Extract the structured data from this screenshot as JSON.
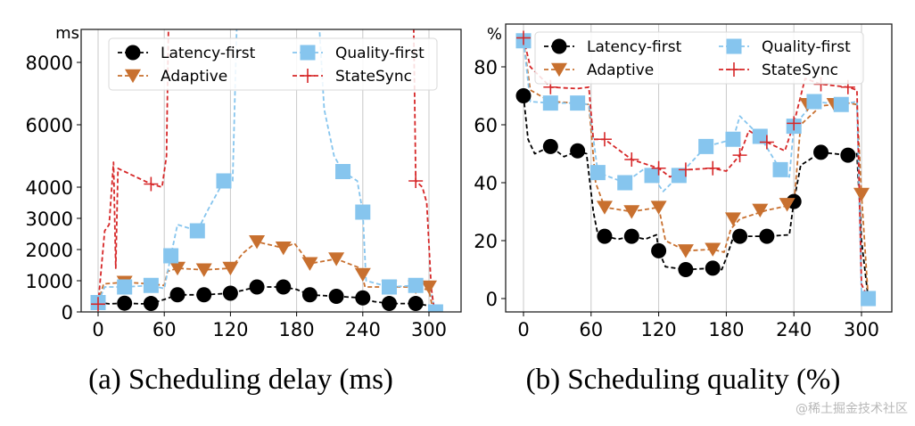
{
  "chart_data": [
    {
      "type": "line",
      "id": "delay",
      "title": "",
      "caption": "(a) Scheduling delay (ms)",
      "xlabel": "",
      "ylabel": "ms",
      "xlim": [
        -15,
        330
      ],
      "ylim": [
        0,
        9000
      ],
      "xticks": [
        0,
        60,
        120,
        180,
        240,
        300
      ],
      "xtick_labels": [
        "0",
        "60",
        "120",
        "180",
        "240",
        "300"
      ],
      "yticks": [
        0,
        1000,
        2000,
        3000,
        4000,
        6000,
        8000
      ],
      "ytick_labels": [
        "0",
        "1000",
        "2000",
        "3000",
        "4000",
        "6000",
        "8000"
      ],
      "grid": "vertical",
      "legend": {
        "position": "top",
        "columns": 2
      },
      "series": [
        {
          "name": "Latency-first",
          "color": "#000000",
          "marker": "circle",
          "x": [
            0,
            10,
            24,
            40,
            48,
            60,
            72,
            96,
            120,
            144,
            168,
            180,
            192,
            216,
            240,
            250,
            264,
            288,
            300,
            306
          ],
          "y": [
            300,
            260,
            280,
            260,
            270,
            400,
            550,
            550,
            600,
            800,
            800,
            720,
            550,
            500,
            450,
            330,
            270,
            270,
            200,
            0
          ],
          "marker_x": [
            24,
            48,
            72,
            96,
            120,
            144,
            168,
            192,
            216,
            240,
            264,
            288
          ],
          "marker_y": [
            280,
            270,
            550,
            550,
            600,
            800,
            800,
            550,
            500,
            450,
            270,
            270
          ]
        },
        {
          "name": "Adaptive",
          "color": "#c8702f",
          "marker": "triangle-down",
          "x": [
            0,
            5,
            24,
            48,
            60,
            63,
            72,
            96,
            120,
            132,
            144,
            168,
            178,
            192,
            216,
            238,
            242,
            264,
            288,
            300,
            304
          ],
          "y": [
            300,
            900,
            950,
            900,
            850,
            1300,
            1400,
            1350,
            1400,
            1900,
            2250,
            2050,
            2200,
            1550,
            1700,
            1400,
            800,
            800,
            800,
            700,
            0
          ],
          "marker_x": [
            24,
            72,
            96,
            120,
            144,
            168,
            192,
            216,
            240,
            264,
            288,
            300
          ],
          "marker_y": [
            950,
            1400,
            1350,
            1400,
            2250,
            2050,
            1550,
            1700,
            1200,
            800,
            800,
            800
          ]
        },
        {
          "name": "Quality-first",
          "color": "#86c5ee",
          "marker": "square",
          "x": [
            0,
            6,
            24,
            48,
            60,
            66,
            72,
            90,
            100,
            114,
            122,
            126,
            200,
            205,
            214,
            222,
            235,
            240,
            243,
            264,
            288,
            300,
            306
          ],
          "y": [
            300,
            800,
            800,
            850,
            750,
            1800,
            2800,
            2600,
            3300,
            4200,
            4200,
            9500,
            9500,
            6500,
            5000,
            4500,
            4200,
            3200,
            1000,
            800,
            850,
            900,
            0
          ],
          "marker_x": [
            0,
            24,
            48,
            66,
            90,
            114,
            222,
            240,
            264,
            288,
            306
          ],
          "marker_y": [
            300,
            800,
            850,
            1800,
            2600,
            4200,
            4500,
            3200,
            800,
            850,
            0
          ]
        },
        {
          "name": "StateSync",
          "color": "#d62728",
          "marker": "plus",
          "x": [
            0,
            6,
            10,
            14,
            16,
            18,
            24,
            36,
            48,
            58,
            62,
            64,
            286,
            288,
            294,
            298,
            302,
            305
          ],
          "y": [
            250,
            2600,
            2800,
            4800,
            1400,
            4600,
            4500,
            4300,
            4100,
            4000,
            5000,
            9500,
            9500,
            4200,
            4000,
            3500,
            800,
            0
          ],
          "marker_x": [
            0,
            48,
            288
          ],
          "marker_y": [
            250,
            4100,
            4200
          ]
        }
      ]
    },
    {
      "type": "line",
      "id": "quality",
      "title": "",
      "caption": "(b) Scheduling quality (%)",
      "xlabel": "",
      "ylabel": "%",
      "xlim": [
        -15,
        330
      ],
      "ylim": [
        -4,
        92
      ],
      "xticks": [
        0,
        60,
        120,
        180,
        240,
        300
      ],
      "xtick_labels": [
        "0",
        "60",
        "120",
        "180",
        "240",
        "300"
      ],
      "yticks": [
        0,
        20,
        40,
        60,
        80
      ],
      "ytick_labels": [
        "0",
        "20",
        "40",
        "60",
        "80"
      ],
      "grid": "vertical",
      "legend": {
        "position": "top",
        "columns": 2
      },
      "series": [
        {
          "name": "Latency-first",
          "color": "#000000",
          "marker": "circle",
          "x": [
            0,
            4,
            10,
            24,
            36,
            48,
            56,
            62,
            66,
            72,
            84,
            96,
            108,
            118,
            120,
            126,
            144,
            168,
            176,
            180,
            186,
            192,
            216,
            236,
            240,
            246,
            264,
            288,
            296,
            300,
            306
          ],
          "y": [
            70,
            55,
            50,
            52.5,
            49,
            51,
            50,
            30,
            22,
            21.5,
            20.5,
            21.5,
            20.5,
            22,
            16.5,
            11,
            10,
            10.5,
            10,
            14,
            21,
            21.5,
            21.5,
            22,
            33.5,
            46,
            50.5,
            49.5,
            50,
            20,
            0
          ],
          "marker_x": [
            0,
            24,
            48,
            72,
            96,
            120,
            144,
            168,
            192,
            216,
            240,
            264,
            288
          ],
          "marker_y": [
            70,
            52.5,
            51,
            21.5,
            21.5,
            16.5,
            10,
            10.5,
            21.5,
            21.5,
            33.5,
            50.5,
            49.5
          ]
        },
        {
          "name": "Adaptive",
          "color": "#c8702f",
          "marker": "triangle-down",
          "x": [
            0,
            6,
            24,
            48,
            58,
            64,
            72,
            96,
            120,
            126,
            144,
            168,
            178,
            184,
            192,
            216,
            240,
            246,
            264,
            288,
            296,
            300,
            306
          ],
          "y": [
            89,
            72,
            68,
            67.5,
            67,
            40,
            31.5,
            30,
            31.5,
            20,
            16.5,
            17,
            16,
            24,
            27.5,
            30.5,
            32.5,
            60,
            66.5,
            67.5,
            67,
            36,
            0
          ],
          "marker_x": [
            72,
            96,
            120,
            144,
            168,
            186,
            210,
            234,
            252,
            276,
            300
          ],
          "marker_y": [
            31.5,
            30,
            31.5,
            16.5,
            17,
            27.5,
            30.5,
            32.5,
            67,
            67,
            36
          ]
        },
        {
          "name": "Quality-first",
          "color": "#86c5ee",
          "marker": "square",
          "x": [
            0,
            6,
            24,
            48,
            58,
            66,
            90,
            108,
            114,
            124,
            138,
            162,
            186,
            192,
            210,
            228,
            236,
            240,
            258,
            282,
            296,
            300,
            306
          ],
          "y": [
            89,
            68,
            67.5,
            67.5,
            67,
            43.5,
            40,
            45,
            42.5,
            37,
            42.5,
            52.5,
            55,
            63,
            56,
            44.5,
            42,
            59.5,
            68,
            67,
            68,
            2,
            0
          ],
          "marker_x": [
            0,
            24,
            48,
            66,
            90,
            114,
            138,
            162,
            186,
            210,
            228,
            240,
            258,
            282,
            306
          ],
          "marker_y": [
            89,
            67.5,
            67.5,
            43.5,
            40,
            42.5,
            42.5,
            52.5,
            55,
            56,
            44.5,
            59.5,
            68,
            67,
            0
          ]
        },
        {
          "name": "StateSync",
          "color": "#d62728",
          "marker": "plus",
          "x": [
            0,
            6,
            24,
            48,
            58,
            62,
            72,
            96,
            120,
            130,
            144,
            168,
            180,
            192,
            200,
            216,
            232,
            240,
            250,
            264,
            288,
            296,
            300,
            306
          ],
          "y": [
            90,
            80,
            73,
            72.5,
            73,
            55,
            55,
            48,
            45,
            42,
            44.5,
            45,
            44,
            49.5,
            58,
            54,
            51,
            60.5,
            76,
            74,
            73,
            72,
            5,
            0
          ],
          "marker_x": [
            0,
            24,
            72,
            96,
            120,
            144,
            168,
            192,
            216,
            240,
            264,
            288
          ],
          "marker_y": [
            90,
            73,
            55,
            48,
            45,
            44.5,
            45,
            49.5,
            54,
            60.5,
            74,
            73
          ]
        }
      ]
    }
  ],
  "legend_labels": [
    "Latency-first",
    "Adaptive",
    "Quality-first",
    "StateSync"
  ],
  "captions": {
    "left": "(a) Scheduling delay (ms)",
    "right": "(b) Scheduling quality (%)"
  },
  "watermark": "@稀土掘金技术社区"
}
